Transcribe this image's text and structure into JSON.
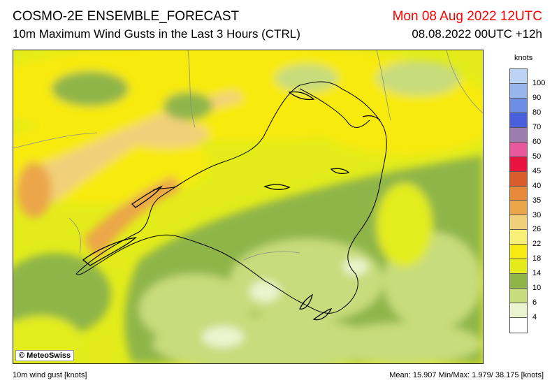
{
  "header": {
    "title": "COSMO-2E ENSEMBLE_FORECAST",
    "subtitle": "10m Maximum Wind Gusts in the Last 3 Hours (CTRL)",
    "valid_time": "Mon 08 Aug 2022 12UTC",
    "run_time": "08.08.2022 00UTC +12h"
  },
  "map": {
    "copyright": "© MeteoSwiss"
  },
  "legend": {
    "unit": "knots",
    "labels": [
      "100",
      "90",
      "80",
      "70",
      "60",
      "50",
      "45",
      "40",
      "35",
      "30",
      "26",
      "22",
      "18",
      "14",
      "10",
      "6",
      "4"
    ],
    "colors": [
      "#bcd3f5",
      "#98b6ee",
      "#6e8ee6",
      "#4a5fdb",
      "#9b7db0",
      "#e7589c",
      "#e8143f",
      "#d95d2c",
      "#e6893a",
      "#eba64a",
      "#f1d07a",
      "#f8ef79",
      "#f7ea10",
      "#e3ec1a",
      "#8fb548",
      "#c7dc7c",
      "#ecf4cf",
      "#ffffff"
    ]
  },
  "footer": {
    "left": "10m wind gust [knots]",
    "right": "Mean:  15.907 Min/Max:   1.979/ 38.175 [knots]"
  }
}
